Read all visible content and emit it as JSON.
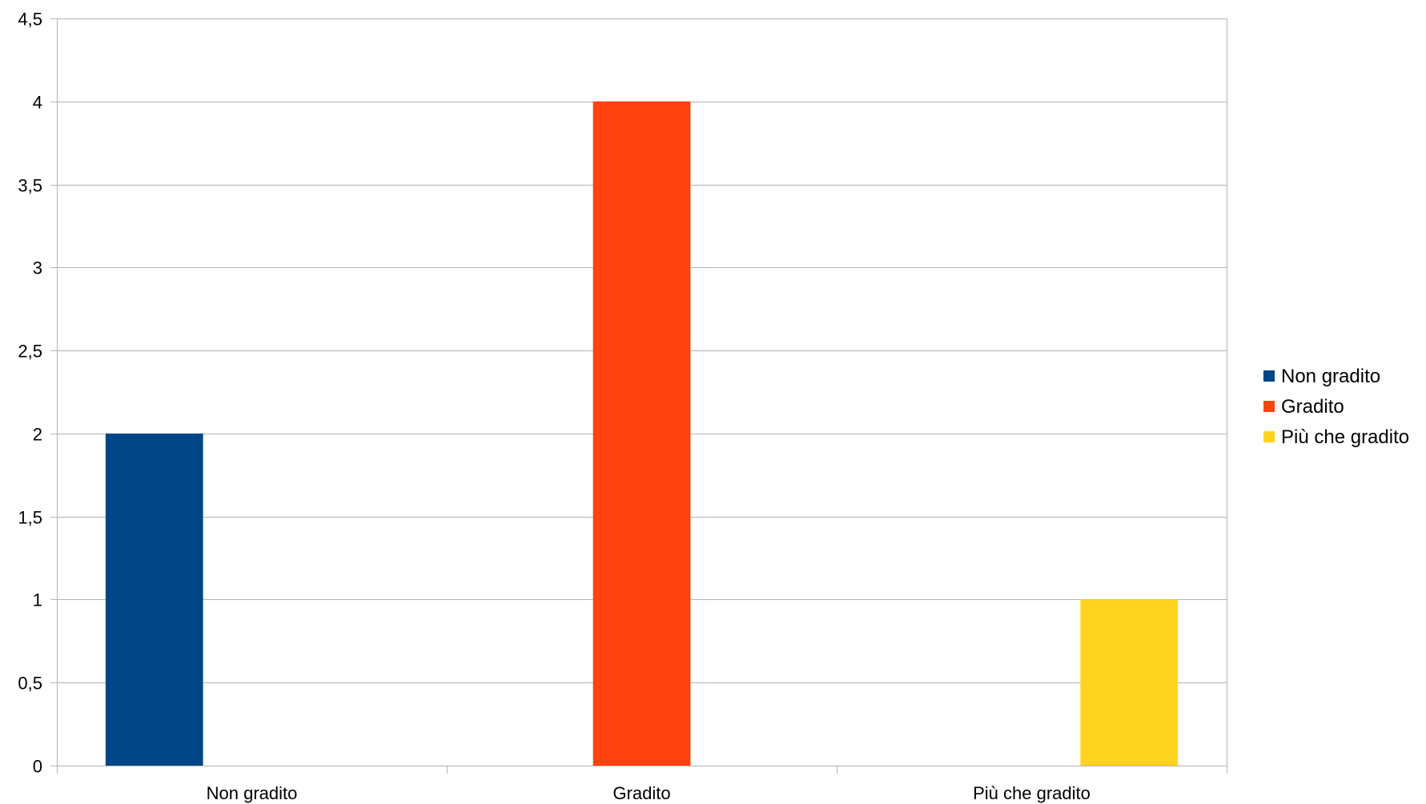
{
  "chart_data": {
    "type": "bar",
    "categories": [
      "Non gradito",
      "Gradito",
      "Più che gradito"
    ],
    "series": [
      {
        "name": "Non gradito",
        "values": [
          2,
          null,
          null
        ],
        "color": "#004586"
      },
      {
        "name": "Gradito",
        "values": [
          null,
          4,
          null
        ],
        "color": "#ff420e"
      },
      {
        "name": "Più che gradito",
        "values": [
          null,
          null,
          1
        ],
        "color": "#ffd320"
      }
    ],
    "ylim": [
      0,
      4.5
    ],
    "yticks": [
      "0",
      "0,5",
      "1",
      "1,5",
      "2",
      "2,5",
      "3",
      "3,5",
      "4",
      "4,5"
    ],
    "ytick_values": [
      0,
      0.5,
      1,
      1.5,
      2,
      2.5,
      3,
      3.5,
      4,
      4.5
    ],
    "grid": true,
    "legend_position": "right",
    "grid_color": "#b3b3b3",
    "axis_color": "#b3b3b3"
  }
}
